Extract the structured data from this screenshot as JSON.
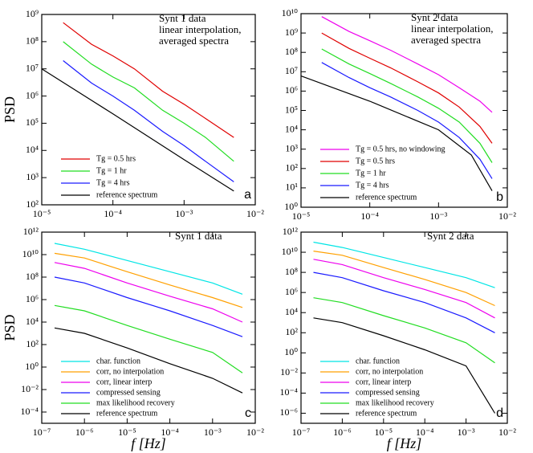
{
  "chart_data": [
    {
      "type": "line",
      "xscale": "log",
      "yscale": "log",
      "xlim": [
        1e-05,
        0.01
      ],
      "ylim": [
        100,
        1000000000.0
      ],
      "xticks": [
        {
          "value": 1e-05,
          "label": "10⁻⁵"
        },
        {
          "value": 0.0001,
          "label": "10⁻⁴"
        },
        {
          "value": 0.001,
          "label": "10⁻³"
        },
        {
          "value": 0.01,
          "label": "10⁻²"
        }
      ],
      "yticks": [
        {
          "value": 100,
          "label": "10²"
        },
        {
          "value": 1000,
          "label": "10³"
        },
        {
          "value": 10000.0,
          "label": "10⁴"
        },
        {
          "value": 100000.0,
          "label": "10⁵"
        },
        {
          "value": 1000000.0,
          "label": "10⁶"
        },
        {
          "value": 10000000.0,
          "label": "10⁷"
        },
        {
          "value": 100000000.0,
          "label": "10⁸"
        },
        {
          "value": 1000000000.0,
          "label": "10⁹"
        }
      ],
      "ylabel": "PSD",
      "annotation": [
        "Synt 1 data",
        "linear interpolation,",
        "averaged spectra"
      ],
      "panel_label": "a",
      "legend": "lower left",
      "series": [
        {
          "name": "Tg = 0.5 hrs",
          "color": "#e00000",
          "x": [
            2e-05,
            5e-05,
            0.0001,
            0.0002,
            0.0005,
            0.001,
            0.002,
            0.005
          ],
          "values": [
            500000000.0,
            80000000.0,
            30000000.0,
            10000000.0,
            1500000.0,
            500000.0,
            150000.0,
            30000.0
          ]
        },
        {
          "name": "Tg = 1 hr",
          "color": "#22dd22",
          "x": [
            2e-05,
            5e-05,
            0.0001,
            0.0002,
            0.0005,
            0.001,
            0.002,
            0.005
          ],
          "values": [
            100000000.0,
            15000000.0,
            5000000.0,
            2000000.0,
            300000.0,
            100000.0,
            30000.0,
            4000
          ]
        },
        {
          "name": "Tg = 4 hrs",
          "color": "#1a1aff",
          "x": [
            2e-05,
            5e-05,
            0.0001,
            0.0002,
            0.0005,
            0.001,
            0.002,
            0.005
          ],
          "values": [
            20000000.0,
            3000000.0,
            1000000.0,
            300000.0,
            50000.0,
            15000.0,
            4000,
            700
          ]
        },
        {
          "name": "reference spectrum",
          "color": "#000000",
          "x": [
            1e-05,
            0.0001,
            0.001,
            0.005
          ],
          "values": [
            10000000.0,
            220000.0,
            4600,
            320
          ]
        }
      ]
    },
    {
      "type": "line",
      "xscale": "log",
      "yscale": "log",
      "xlim": [
        1e-05,
        0.01
      ],
      "ylim": [
        1,
        10000000000.0
      ],
      "xticks": [
        {
          "value": 1e-05,
          "label": "10⁻⁵"
        },
        {
          "value": 0.0001,
          "label": "10⁻⁴"
        },
        {
          "value": 0.001,
          "label": "10⁻³"
        },
        {
          "value": 0.01,
          "label": "10⁻²"
        }
      ],
      "yticks": [
        {
          "value": 1,
          "label": "10⁰"
        },
        {
          "value": 10,
          "label": "10¹"
        },
        {
          "value": 100,
          "label": "10²"
        },
        {
          "value": 1000,
          "label": "10³"
        },
        {
          "value": 10000.0,
          "label": "10⁴"
        },
        {
          "value": 100000.0,
          "label": "10⁵"
        },
        {
          "value": 1000000.0,
          "label": "10⁶"
        },
        {
          "value": 10000000.0,
          "label": "10⁷"
        },
        {
          "value": 100000000.0,
          "label": "10⁸"
        },
        {
          "value": 1000000000.0,
          "label": "10⁹"
        },
        {
          "value": 10000000000.0,
          "label": "10¹⁰"
        }
      ],
      "annotation": [
        "Synt 2 data",
        "linear interpolation,",
        "averaged spectra"
      ],
      "panel_label": "b",
      "legend": "lower left",
      "series": [
        {
          "name": "Tg = 0.5 hrs, no windowing",
          "color": "#ee00ee",
          "x": [
            2e-05,
            5e-05,
            0.0001,
            0.0002,
            0.0005,
            0.001,
            0.002,
            0.004,
            0.006
          ],
          "values": [
            7000000000.0,
            1200000000.0,
            400000000.0,
            130000000.0,
            25000000.0,
            7000000.0,
            1500000.0,
            300000.0,
            80000.0
          ]
        },
        {
          "name": "Tg = 0.5 hrs",
          "color": "#e00000",
          "x": [
            2e-05,
            5e-05,
            0.0001,
            0.0002,
            0.0005,
            0.001,
            0.002,
            0.004,
            0.006
          ],
          "values": [
            1000000000.0,
            160000000.0,
            50000000.0,
            16000000.0,
            3000000.0,
            800000.0,
            150000.0,
            15000.0,
            2000
          ]
        },
        {
          "name": "Tg = 1 hr",
          "color": "#22dd22",
          "x": [
            2e-05,
            5e-05,
            0.0001,
            0.0002,
            0.0005,
            0.001,
            0.002,
            0.004,
            0.006
          ],
          "values": [
            150000000.0,
            25000000.0,
            8000000.0,
            2500000.0,
            500000.0,
            130000.0,
            25000.0,
            2000,
            200
          ]
        },
        {
          "name": "Tg = 4 hrs",
          "color": "#1a1aff",
          "x": [
            2e-05,
            5e-05,
            0.0001,
            0.0002,
            0.0005,
            0.001,
            0.002,
            0.004,
            0.006
          ],
          "values": [
            30000000.0,
            5000000.0,
            1500000.0,
            500000.0,
            100000.0,
            25000.0,
            4000,
            300,
            30
          ]
        },
        {
          "name": "reference spectrum",
          "color": "#000000",
          "x": [
            1e-05,
            0.0001,
            0.001,
            0.003,
            0.006
          ],
          "values": [
            6000000.0,
            300000.0,
            10000.0,
            500,
            7
          ]
        }
      ]
    },
    {
      "type": "line",
      "xscale": "log",
      "yscale": "log",
      "xlim": [
        1e-07,
        0.01
      ],
      "ylim": [
        1e-05,
        1000000000000.0
      ],
      "xticks": [
        {
          "value": 1e-07,
          "label": "10⁻⁷"
        },
        {
          "value": 1e-06,
          "label": "10⁻⁶"
        },
        {
          "value": 1e-05,
          "label": "10⁻⁵"
        },
        {
          "value": 0.0001,
          "label": "10⁻⁴"
        },
        {
          "value": 0.001,
          "label": "10⁻³"
        },
        {
          "value": 0.01,
          "label": "10⁻²"
        }
      ],
      "yticks": [
        {
          "value": 0.0001,
          "label": "10⁻⁴"
        },
        {
          "value": 0.01,
          "label": "10⁻²"
        },
        {
          "value": 1,
          "label": "10⁰"
        },
        {
          "value": 100,
          "label": "10²"
        },
        {
          "value": 10000.0,
          "label": "10⁴"
        },
        {
          "value": 1000000.0,
          "label": "10⁶"
        },
        {
          "value": 100000000.0,
          "label": "10⁸"
        },
        {
          "value": 10000000000.0,
          "label": "10¹⁰"
        },
        {
          "value": 1000000000000.0,
          "label": "10¹²"
        }
      ],
      "ylabel": "PSD",
      "xlabel": "f [Hz]",
      "annotation": [
        "Synt 1 data"
      ],
      "panel_label": "c",
      "legend": "lower left",
      "series": [
        {
          "name": "char. function",
          "color": "#00e5e5",
          "x": [
            2e-07,
            1e-06,
            1e-05,
            0.0001,
            0.001,
            0.005
          ],
          "values": [
            100000000000.0,
            30000000000.0,
            3000000000.0,
            300000000.0,
            30000000.0,
            3000000.0
          ]
        },
        {
          "name": "corr, no interpolation",
          "color": "#ffa000",
          "x": [
            2e-07,
            1e-06,
            1e-05,
            0.0001,
            0.001,
            0.005
          ],
          "values": [
            13000000000.0,
            5000000000.0,
            300000000.0,
            20000000.0,
            1500000.0,
            200000.0
          ]
        },
        {
          "name": "corr, linear interp",
          "color": "#ee00ee",
          "x": [
            2e-07,
            1e-06,
            1e-05,
            0.0001,
            0.001,
            0.005
          ],
          "values": [
            2000000000.0,
            600000000.0,
            30000000.0,
            2000000.0,
            150000.0,
            10000.0
          ]
        },
        {
          "name": "compressed sensing",
          "color": "#1a1aff",
          "x": [
            2e-07,
            1e-06,
            1e-05,
            0.0001,
            0.001,
            0.005
          ],
          "values": [
            100000000.0,
            30000000.0,
            1500000.0,
            100000.0,
            5000,
            500
          ]
        },
        {
          "name": "max likelihood recovery",
          "color": "#22dd22",
          "x": [
            2e-07,
            1e-06,
            1e-05,
            0.0001,
            0.001,
            0.005
          ],
          "values": [
            300000.0,
            100000.0,
            5000,
            300,
            20,
            0.3
          ]
        },
        {
          "name": "reference spectrum",
          "color": "#000000",
          "x": [
            2e-07,
            1e-06,
            1e-05,
            0.0001,
            0.001,
            0.005
          ],
          "values": [
            3000,
            1000,
            50,
            2,
            0.1,
            0.005
          ]
        }
      ]
    },
    {
      "type": "line",
      "xscale": "log",
      "yscale": "log",
      "xlim": [
        1e-07,
        0.01
      ],
      "ylim": [
        1e-07,
        1000000000000.0
      ],
      "xticks": [
        {
          "value": 1e-07,
          "label": "10⁻⁷"
        },
        {
          "value": 1e-06,
          "label": "10⁻⁶"
        },
        {
          "value": 1e-05,
          "label": "10⁻⁵"
        },
        {
          "value": 0.0001,
          "label": "10⁻⁴"
        },
        {
          "value": 0.001,
          "label": "10⁻³"
        },
        {
          "value": 0.01,
          "label": "10⁻²"
        }
      ],
      "yticks": [
        {
          "value": 1e-06,
          "label": "10⁻⁶"
        },
        {
          "value": 0.0001,
          "label": "10⁻⁴"
        },
        {
          "value": 0.01,
          "label": "10⁻²"
        },
        {
          "value": 1,
          "label": "10⁰"
        },
        {
          "value": 100,
          "label": "10²"
        },
        {
          "value": 10000.0,
          "label": "10⁴"
        },
        {
          "value": 1000000.0,
          "label": "10⁶"
        },
        {
          "value": 100000000.0,
          "label": "10⁸"
        },
        {
          "value": 10000000000.0,
          "label": "10¹⁰"
        },
        {
          "value": 1000000000000.0,
          "label": "10¹²"
        }
      ],
      "xlabel": "f [Hz]",
      "annotation": [
        "Synt 2 data"
      ],
      "panel_label": "d",
      "legend": "lower left",
      "series": [
        {
          "name": "char. function",
          "color": "#00e5e5",
          "x": [
            2e-07,
            1e-06,
            1e-05,
            0.0001,
            0.001,
            0.005
          ],
          "values": [
            100000000000.0,
            30000000000.0,
            3000000000.0,
            300000000.0,
            30000000.0,
            3000000.0
          ]
        },
        {
          "name": "corr, no interpolation",
          "color": "#ffa000",
          "x": [
            2e-07,
            1e-06,
            1e-05,
            0.0001,
            0.001,
            0.005
          ],
          "values": [
            13000000000.0,
            5000000000.0,
            300000000.0,
            20000000.0,
            1000000.0,
            50000.0
          ]
        },
        {
          "name": "corr, linear interp",
          "color": "#ee00ee",
          "x": [
            2e-07,
            1e-06,
            1e-05,
            0.0001,
            0.001,
            0.005
          ],
          "values": [
            2000000000.0,
            600000000.0,
            30000000.0,
            2000000.0,
            100000.0,
            3000
          ]
        },
        {
          "name": "compressed sensing",
          "color": "#1a1aff",
          "x": [
            2e-07,
            1e-06,
            1e-05,
            0.0001,
            0.001,
            0.005
          ],
          "values": [
            100000000.0,
            30000000.0,
            1500000.0,
            100000.0,
            3000,
            100
          ]
        },
        {
          "name": "max likelihood recovery",
          "color": "#22dd22",
          "x": [
            2e-07,
            1e-06,
            1e-05,
            0.0001,
            0.001,
            0.005
          ],
          "values": [
            300000.0,
            100000.0,
            5000,
            300,
            10,
            0.1
          ]
        },
        {
          "name": "reference spectrum",
          "color": "#000000",
          "x": [
            2e-07,
            1e-06,
            1e-05,
            0.0001,
            0.001,
            0.005
          ],
          "values": [
            3000,
            1000,
            50,
            2,
            0.05,
            1e-06
          ]
        }
      ]
    }
  ]
}
